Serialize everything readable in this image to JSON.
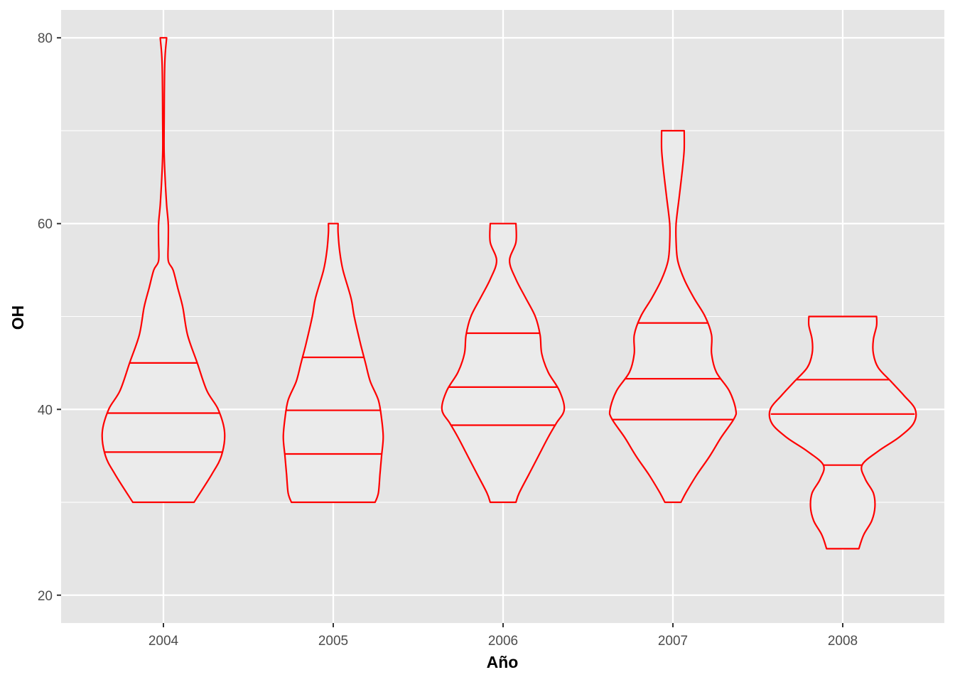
{
  "chart_data": {
    "type": "violin",
    "xlabel": "Año",
    "ylabel": "OH",
    "categories": [
      "2004",
      "2005",
      "2006",
      "2007",
      "2008"
    ],
    "ylim": [
      17,
      83
    ],
    "y_ticks": [
      20,
      40,
      60,
      80
    ],
    "y_tick_labels": [
      "20",
      "40",
      "60",
      "80"
    ],
    "grid": true,
    "colors": {
      "panel": "#e5e5e5",
      "grid": "#ffffff",
      "violin_stroke": "#ff0000",
      "violin_fill": "#ebebeb",
      "tick_text": "#4d4d4d",
      "tick_mark": "#333333"
    },
    "violins": [
      {
        "category": "2004",
        "min": 30,
        "max": 80,
        "quantiles": [
          35.4,
          39.6,
          45.0
        ],
        "profile": [
          [
            30,
            0.19
          ],
          [
            33,
            0.3
          ],
          [
            35,
            0.36
          ],
          [
            37.5,
            0.38
          ],
          [
            40,
            0.34
          ],
          [
            42,
            0.27
          ],
          [
            45,
            0.21
          ],
          [
            48,
            0.15
          ],
          [
            51,
            0.12
          ],
          [
            53,
            0.09
          ],
          [
            55,
            0.06
          ],
          [
            56,
            0.03
          ],
          [
            58,
            0.03
          ],
          [
            60,
            0.03
          ],
          [
            62,
            0.02
          ],
          [
            65,
            0.01
          ],
          [
            68,
            0.004
          ],
          [
            72,
            0.005
          ],
          [
            75,
            0.006
          ],
          [
            78,
            0.01
          ],
          [
            80,
            0.02
          ]
        ]
      },
      {
        "category": "2005",
        "min": 30,
        "max": 60,
        "quantiles": [
          35.2,
          39.9,
          45.6
        ],
        "profile": [
          [
            30,
            0.26
          ],
          [
            31,
            0.28
          ],
          [
            33,
            0.29
          ],
          [
            35,
            0.3
          ],
          [
            37,
            0.31
          ],
          [
            39,
            0.3
          ],
          [
            41,
            0.28
          ],
          [
            43,
            0.23
          ],
          [
            45,
            0.2
          ],
          [
            47,
            0.17
          ],
          [
            50,
            0.13
          ],
          [
            52,
            0.11
          ],
          [
            55,
            0.06
          ],
          [
            57,
            0.04
          ],
          [
            59,
            0.03
          ],
          [
            60,
            0.03
          ]
        ]
      },
      {
        "category": "2006",
        "min": 30,
        "max": 60,
        "quantiles": [
          38.3,
          42.4,
          48.2
        ],
        "profile": [
          [
            30,
            0.08
          ],
          [
            31,
            0.1
          ],
          [
            33,
            0.16
          ],
          [
            35,
            0.22
          ],
          [
            37,
            0.28
          ],
          [
            38.5,
            0.33
          ],
          [
            40,
            0.38
          ],
          [
            42,
            0.35
          ],
          [
            44,
            0.28
          ],
          [
            46,
            0.24
          ],
          [
            48,
            0.23
          ],
          [
            50,
            0.2
          ],
          [
            52,
            0.14
          ],
          [
            54,
            0.08
          ],
          [
            56,
            0.04
          ],
          [
            58,
            0.08
          ],
          [
            60,
            0.08
          ]
        ]
      },
      {
        "category": "2007",
        "min": 30,
        "max": 70,
        "quantiles": [
          38.9,
          43.3,
          49.3
        ],
        "profile": [
          [
            30,
            0.05
          ],
          [
            31,
            0.08
          ],
          [
            33,
            0.15
          ],
          [
            35,
            0.23
          ],
          [
            37,
            0.3
          ],
          [
            39,
            0.38
          ],
          [
            40,
            0.39
          ],
          [
            42,
            0.35
          ],
          [
            44,
            0.27
          ],
          [
            46,
            0.24
          ],
          [
            48,
            0.24
          ],
          [
            50,
            0.2
          ],
          [
            52,
            0.13
          ],
          [
            54,
            0.07
          ],
          [
            56,
            0.03
          ],
          [
            58,
            0.02
          ],
          [
            60,
            0.02
          ],
          [
            63,
            0.04
          ],
          [
            66,
            0.06
          ],
          [
            68,
            0.07
          ],
          [
            70,
            0.07
          ]
        ]
      },
      {
        "category": "2008",
        "min": 25,
        "max": 50,
        "quantiles": [
          34.0,
          39.5,
          43.2
        ],
        "profile": [
          [
            25,
            0.1
          ],
          [
            26.5,
            0.13
          ],
          [
            28,
            0.18
          ],
          [
            29.5,
            0.2
          ],
          [
            31,
            0.19
          ],
          [
            32.5,
            0.14
          ],
          [
            34,
            0.12
          ],
          [
            35.5,
            0.22
          ],
          [
            37,
            0.35
          ],
          [
            38.5,
            0.44
          ],
          [
            40,
            0.45
          ],
          [
            41.5,
            0.38
          ],
          [
            43,
            0.3
          ],
          [
            44.5,
            0.22
          ],
          [
            46,
            0.19
          ],
          [
            47.5,
            0.19
          ],
          [
            49,
            0.21
          ],
          [
            50,
            0.21
          ]
        ]
      }
    ]
  }
}
